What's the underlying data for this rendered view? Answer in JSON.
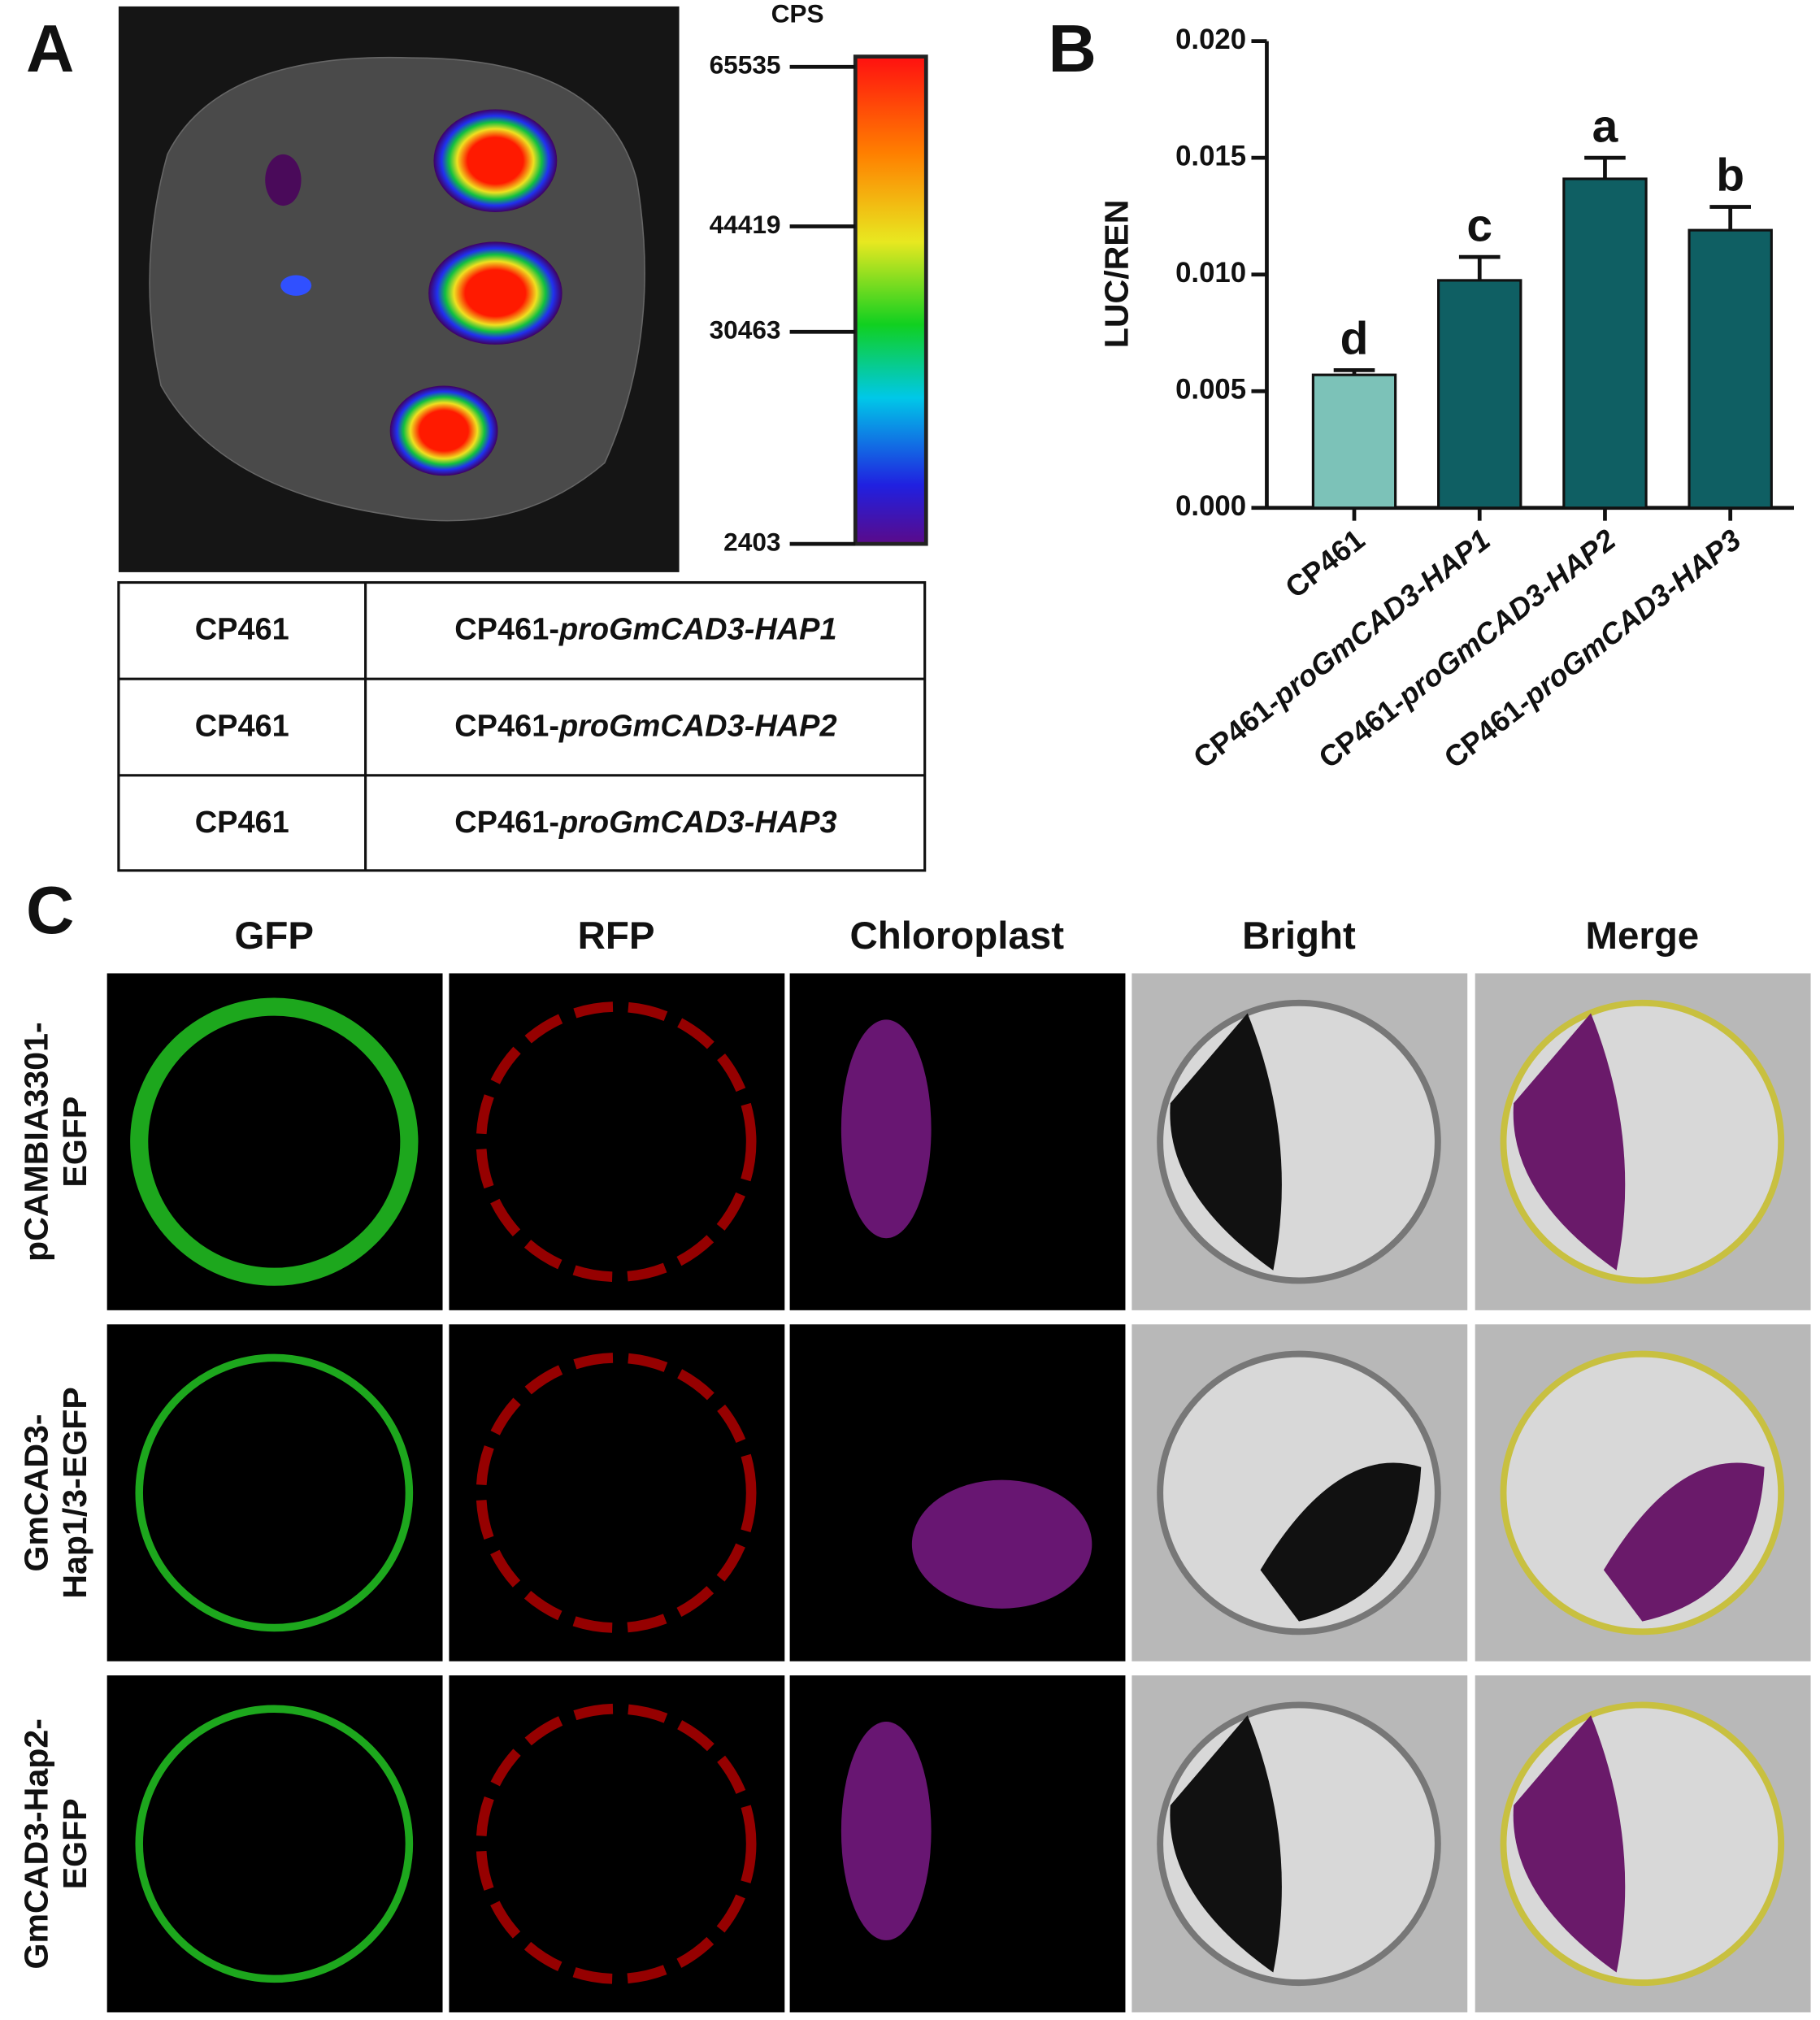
{
  "panel_labels": [
    "A",
    "B",
    "C"
  ],
  "colorbar": {
    "label": "CPS",
    "lim": [
      2403,
      65535
    ],
    "ticks": [
      65535,
      44419,
      30463,
      2403
    ]
  },
  "table": {
    "rows": [
      [
        "CP461",
        "CP461-proGmCAD3-HAP1"
      ],
      [
        "CP461",
        "CP461-proGmCAD3-HAP2"
      ],
      [
        "CP461",
        "CP461-proGmCAD3-HAP3"
      ]
    ]
  },
  "chart_data": {
    "type": "bar",
    "ylabel": "LUC/REN",
    "categories": [
      "CP461",
      "CP461-proGmCAD3-HAP1",
      "CP461-proGmCAD3-HAP2",
      "CP461-proGmCAD3-HAP3"
    ],
    "values": [
      0.0057,
      0.00975,
      0.0141,
      0.0119
    ],
    "errors": [
      0.0002,
      0.001,
      0.0009,
      0.001
    ],
    "annotations": [
      "d",
      "c",
      "a",
      "b"
    ],
    "colors": [
      "#7cc2b8",
      "#0f5f63",
      "#0f5f63",
      "#0f5f63"
    ],
    "ylim": [
      0,
      0.02
    ],
    "yticks": [
      {
        "value": 0,
        "label": "0.000"
      },
      {
        "value": 0.005,
        "label": "0.005"
      },
      {
        "value": 0.01,
        "label": "0.010"
      },
      {
        "value": 0.015,
        "label": "0.015"
      },
      {
        "value": 0.02,
        "label": "0.020"
      }
    ]
  },
  "microscopy": {
    "columns": [
      "GFP",
      "RFP",
      "Chloroplast",
      "Bright",
      "Merge"
    ],
    "rows": [
      [
        "pCAMBIA3301-",
        "EGFP"
      ],
      [
        "GmCAD3-",
        "Hap1/3-EGFP"
      ],
      [
        "GmCAD3-Hap2-",
        "EGFP"
      ]
    ]
  }
}
